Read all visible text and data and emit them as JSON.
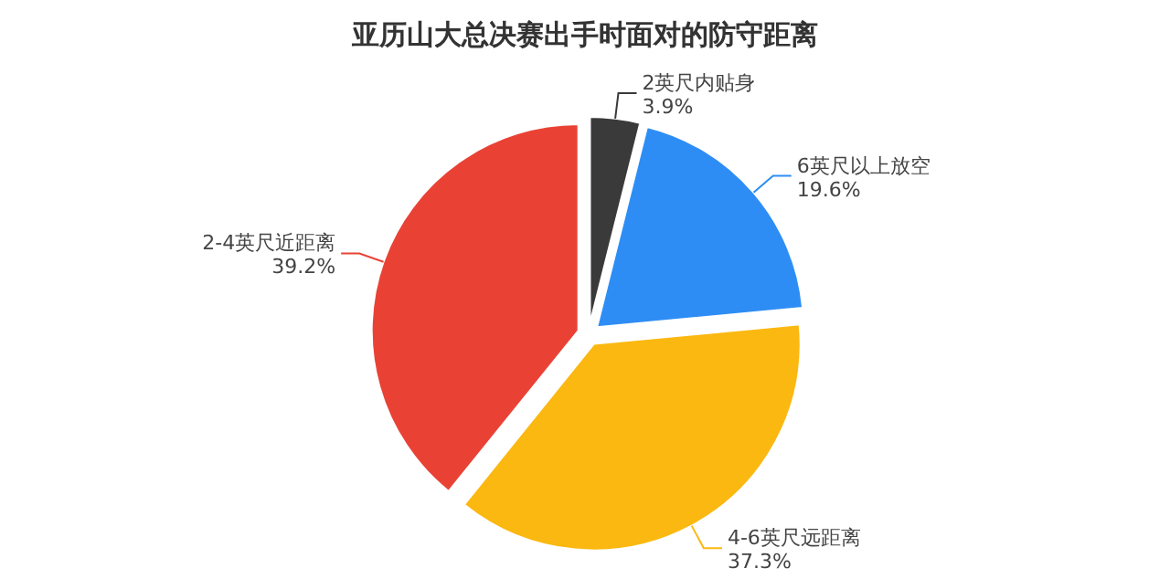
{
  "chart_data": {
    "type": "pie",
    "title": "亚历山大总决赛出手时面对的防守距离",
    "categories": [
      "2英尺内贴身",
      "6英尺以上放空",
      "4-6英尺远距离",
      "2-4英尺近距离"
    ],
    "values": [
      3.9,
      19.6,
      37.3,
      39.2
    ],
    "colors": [
      "#3a3a3a",
      "#2e8df5",
      "#fbb810",
      "#e94235"
    ],
    "value_labels": [
      "3.9%",
      "19.6%",
      "37.3%",
      "39.2%"
    ],
    "legend": false
  }
}
